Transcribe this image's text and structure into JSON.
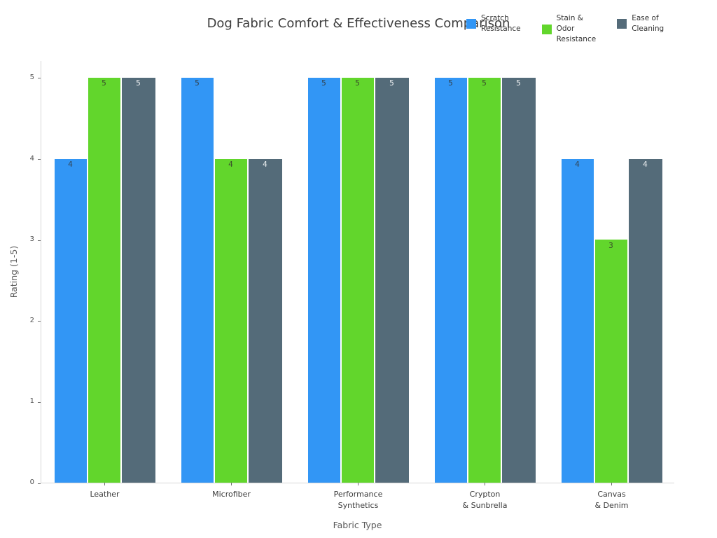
{
  "chart_data": {
    "type": "bar",
    "title": "Dog Fabric Comfort & Effectiveness Comparison",
    "xlabel": "Fabric Type",
    "ylabel": "Rating (1-5)",
    "ylim": [
      0,
      5
    ],
    "yticks": [
      0,
      1,
      2,
      3,
      4,
      5
    ],
    "grid": false,
    "legend_position": "top-right",
    "background_color": "#ffffff",
    "categories": [
      {
        "lines": [
          "Leather"
        ]
      },
      {
        "lines": [
          "Microfiber"
        ]
      },
      {
        "lines": [
          "Performance",
          "Synthetics"
        ]
      },
      {
        "lines": [
          "Crypton",
          "& Sunbrella"
        ]
      },
      {
        "lines": [
          "Canvas",
          "& Denim"
        ]
      }
    ],
    "series": [
      {
        "name": "Scratch Resistance",
        "name_lines": [
          "Scratch",
          "Resistance"
        ],
        "color": "#3296f5",
        "value_label_color": "#33414d",
        "values": [
          4,
          5,
          5,
          5,
          4
        ]
      },
      {
        "name": "Stain & Odor Resistance",
        "name_lines": [
          "Stain &",
          "Odor",
          "Resistance"
        ],
        "color": "#62d62c",
        "value_label_color": "#394a2b",
        "values": [
          5,
          4,
          5,
          5,
          3
        ]
      },
      {
        "name": "Ease of Cleaning",
        "name_lines": [
          "Ease of",
          "Cleaning"
        ],
        "color": "#546b79",
        "value_label_color": "#f0f2f3",
        "values": [
          5,
          4,
          5,
          5,
          4
        ]
      }
    ]
  }
}
